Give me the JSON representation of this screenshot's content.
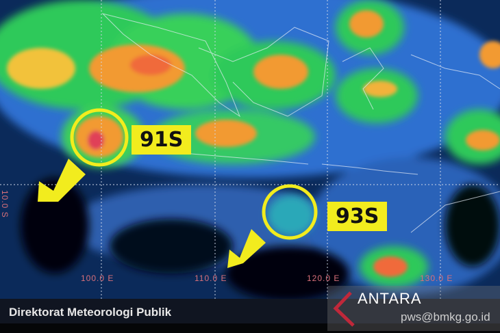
{
  "map": {
    "systems": [
      {
        "label": "91S"
      },
      {
        "label": "93S"
      }
    ],
    "grid_labels": {
      "lat": "10.0 S",
      "lon": [
        "100.0 E",
        "110.0 E",
        "120.0 E",
        "130.0 E"
      ]
    },
    "colors": {
      "ocean": "#0b2a5a",
      "highlight": "#f2ec1e",
      "grid_label": "#d9707a"
    }
  },
  "footer": {
    "source": "Direktorat Meteorologi Publik",
    "email": "pws@bmkg.go.id"
  },
  "watermark": {
    "brand": "ANTARA"
  }
}
